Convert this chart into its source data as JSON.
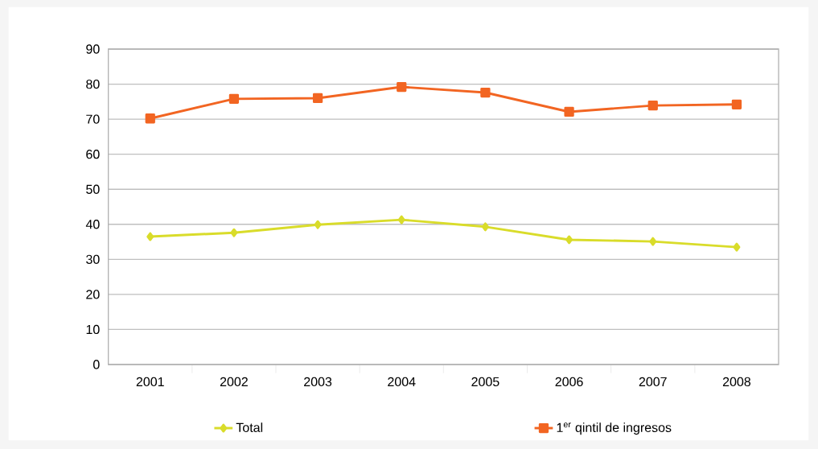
{
  "chart_data": {
    "type": "line",
    "categories": [
      "2001",
      "2002",
      "2003",
      "2004",
      "2005",
      "2006",
      "2007",
      "2008"
    ],
    "series": [
      {
        "name": "Total",
        "color": "#d9dc2a",
        "marker": "diamond",
        "values": [
          36.5,
          37.6,
          39.9,
          41.3,
          39.3,
          35.6,
          35.1,
          33.5
        ]
      },
      {
        "name": "1$^{er}$ qintil de ingresos",
        "color": "#f26522",
        "marker": "square",
        "values": [
          70.2,
          75.8,
          76.0,
          79.2,
          77.6,
          72.1,
          73.9,
          74.2
        ]
      }
    ],
    "ylim": [
      0,
      90
    ],
    "yticks": [
      0,
      10,
      20,
      30,
      40,
      50,
      60,
      70,
      80,
      90
    ],
    "grid": "y",
    "legend": "bottom"
  }
}
